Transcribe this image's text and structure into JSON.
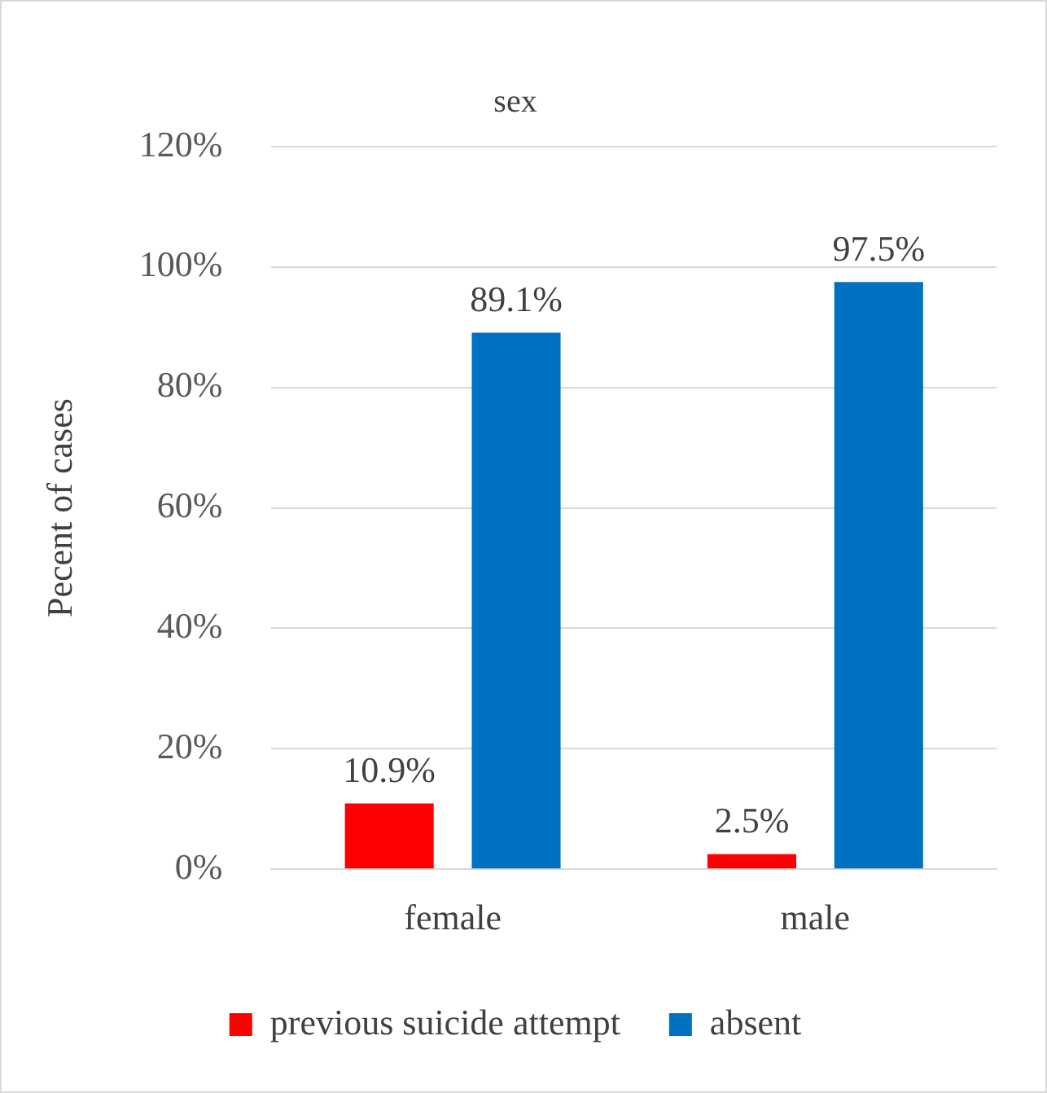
{
  "chart_data": {
    "type": "bar",
    "title": "sex",
    "ylabel": "Pecent of cases",
    "categories": [
      "female",
      "male"
    ],
    "series": [
      {
        "name": "previous suicide attempt",
        "color": "#ff0000",
        "values": [
          10.9,
          2.5
        ],
        "value_labels": [
          "10.9%",
          "2.5%"
        ]
      },
      {
        "name": "absent",
        "color": "#0070c0",
        "values": [
          89.1,
          97.5
        ],
        "value_labels": [
          "89.1%",
          "97.5%"
        ]
      }
    ],
    "ylim": [
      0,
      120
    ],
    "yticks": [
      {
        "value": 0,
        "label": "0%"
      },
      {
        "value": 20,
        "label": "20%"
      },
      {
        "value": 40,
        "label": "40%"
      },
      {
        "value": 60,
        "label": "60%"
      },
      {
        "value": 80,
        "label": "80%"
      },
      {
        "value": 100,
        "label": "100%"
      },
      {
        "value": 120,
        "label": "120%"
      }
    ],
    "grid": "y",
    "legend": "bottom"
  }
}
